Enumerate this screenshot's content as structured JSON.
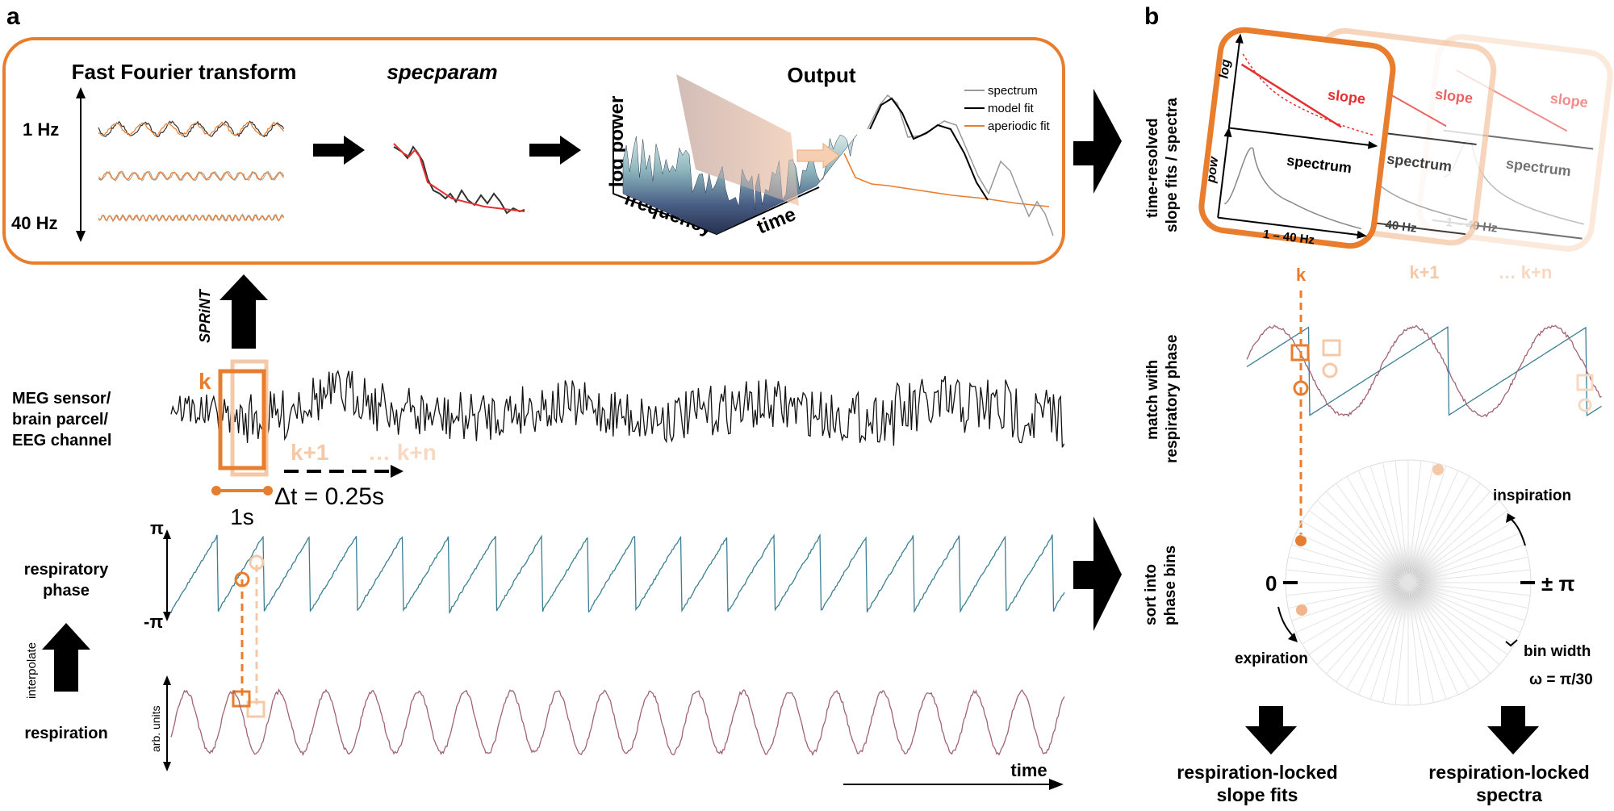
{
  "panel_a": {
    "letter": "a",
    "fft": {
      "title": "Fast Fourier transform",
      "top_label": "1 Hz",
      "bottom_label": "40 Hz"
    },
    "specparam": {
      "title": "specparam"
    },
    "output": {
      "title": "Output",
      "axis_power": "log power",
      "axis_frequency": "frequency",
      "axis_time": "time",
      "legend": [
        "spectrum",
        "model fit",
        "aperiodic fit"
      ]
    },
    "sprint_label": "SPRiNT",
    "signal_label": [
      "MEG sensor/",
      "brain parcel/",
      "EEG channel"
    ],
    "window": {
      "k": "k",
      "k1": "k+1",
      "kn": "… k+n",
      "duration": "1s",
      "step": "Δt = 0.25s"
    },
    "phase": {
      "label": [
        "respiratory",
        "phase"
      ],
      "top": "π",
      "bottom": "-π"
    },
    "interpolate_label": "interpolate",
    "respiration": {
      "label": "respiration",
      "units": "arb. units"
    },
    "time_label": "time"
  },
  "panel_b": {
    "letter": "b",
    "row1_label": [
      "time-resolved",
      "slope fits / spectra"
    ],
    "row2_label": [
      "match with",
      "respiratory phase"
    ],
    "row3_label": [
      "sort into",
      "phase bins"
    ],
    "cards": [
      {
        "slope": "slope",
        "log": "log",
        "pow": "pow",
        "spectrum": "spectrum",
        "freq": "1 – 40 Hz",
        "tag": "k"
      },
      {
        "slope": "slope",
        "spectrum": "spectrum",
        "freq": "40 Hz",
        "tag": "k+1"
      },
      {
        "slope": "slope",
        "spectrum": "spectrum",
        "freq": "1 – 40 Hz",
        "tag": "… k+n"
      }
    ],
    "polar": {
      "inspiration": "inspiration",
      "expiration": "expiration",
      "zero": "0",
      "pi": "± π",
      "bin_width": "bin width",
      "omega": "ω = π/30"
    },
    "outputs": [
      [
        "respiration-locked",
        "slope fits"
      ],
      [
        "respiration-locked",
        "spectra"
      ]
    ]
  },
  "colors": {
    "orange": "#e87d2e",
    "orange_light": "#f2b48a",
    "orange_pale": "#f8d8c0",
    "teal": "#3a7f93",
    "mauve": "#a06470",
    "red": "#e53030"
  }
}
